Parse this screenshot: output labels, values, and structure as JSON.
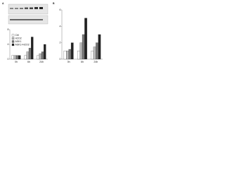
{
  "panels": [
    "A",
    "B"
  ],
  "chart_data": [
    {
      "type": "bar",
      "categories": [
        "0h",
        "6h",
        "24h"
      ],
      "series": [
        {
          "name": "Ctrl",
          "color": "#ffffff",
          "values": [
            1,
            1,
            1
          ]
        },
        {
          "name": "H2O2",
          "color": "#bbbbbb",
          "values": [
            1,
            2,
            1.5
          ]
        },
        {
          "name": "ASK1",
          "color": "#777777",
          "values": [
            1,
            3,
            2
          ]
        },
        {
          "name": "ASK1+H2O2",
          "color": "#222222",
          "values": [
            1,
            6,
            4
          ]
        }
      ],
      "ylim": [
        0,
        8
      ],
      "yticks": [
        0,
        4,
        8
      ],
      "legend": "right"
    },
    {
      "type": "bar",
      "categories": [
        "0h",
        "6h",
        "24h"
      ],
      "series": [
        {
          "name": "Ctrl",
          "color": "#ffffff",
          "values": [
            1,
            1,
            1
          ]
        },
        {
          "name": "H2O2",
          "color": "#bbbbbb",
          "values": [
            1,
            2,
            1.5
          ]
        },
        {
          "name": "ASK1",
          "color": "#777777",
          "values": [
            1.2,
            3,
            2
          ]
        },
        {
          "name": "ASK1+H2O2",
          "color": "#222222",
          "values": [
            2,
            5,
            3
          ]
        }
      ],
      "ylim": [
        0,
        6
      ],
      "yticks": [
        0,
        2,
        4,
        6
      ]
    }
  ]
}
